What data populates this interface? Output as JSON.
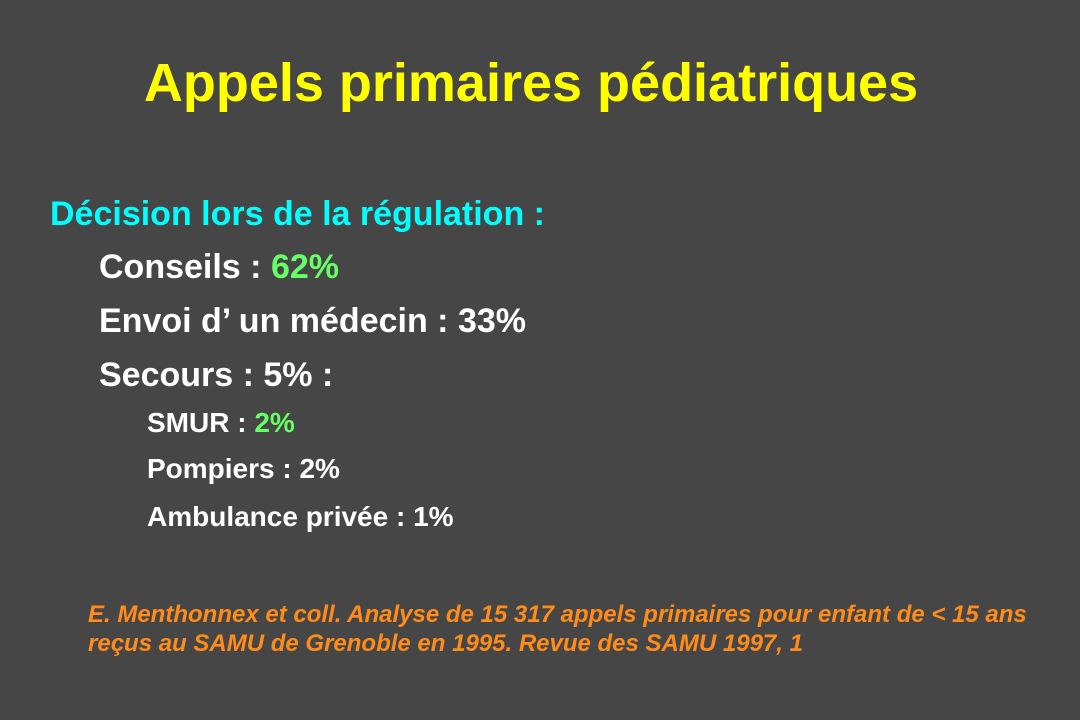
{
  "colors": {
    "background": "#464646",
    "title": "#ffff00",
    "heading": "#00ffff",
    "body_text": "#ffffff",
    "highlight": "#66ff66",
    "citation": "#ff8c1a"
  },
  "title": "Appels primaires pédiatriques",
  "section_heading": "Décision lors de la régulation :",
  "items": [
    {
      "label": "Conseils : ",
      "value": "62%"
    },
    {
      "text": "Envoi d’ un médecin : 33%"
    },
    {
      "text": "Secours : 5% :"
    }
  ],
  "sub_items": [
    {
      "label": "SMUR : ",
      "value": "2%"
    },
    {
      "text": "Pompiers : 2%"
    },
    {
      "text": "Ambulance privée : 1%"
    }
  ],
  "citation": "E. Menthonnex et coll. Analyse de 15 317 appels primaires pour enfant de < 15 ans reçus au SAMU de Grenoble en 1995. Revue des SAMU 1997, 1"
}
